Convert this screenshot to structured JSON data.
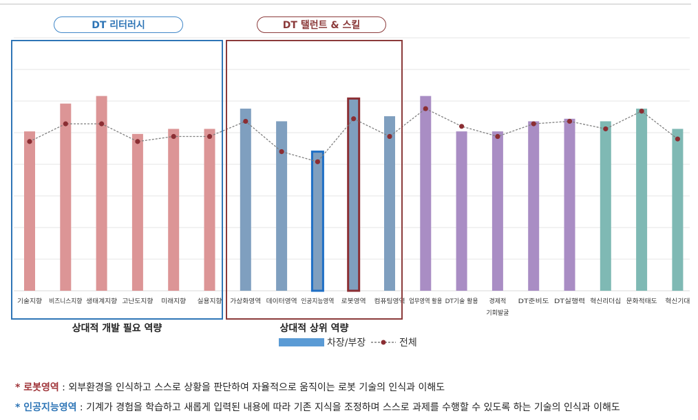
{
  "chart_data": {
    "type": "bar",
    "title": "",
    "xlabel": "",
    "ylabel": "",
    "ylim": [
      0,
      100
    ],
    "categories": [
      "기술지향",
      "비즈니스지향",
      "생태계지향",
      "고난도지향",
      "미래지향",
      "실용지향",
      "가상화영역",
      "데이터영역",
      "인공지능영역",
      "로봇영역",
      "컴퓨팅영역",
      "업무영역 활용",
      "DT기술 활용",
      "경제적 기회발굴",
      "DT준비도",
      "DT실행력",
      "혁신리더십",
      "문화적태도",
      "혁신기대"
    ],
    "series": [
      {
        "name": "차장/부장",
        "type": "bar",
        "values": [
          63,
          74,
          77,
          62,
          64,
          64,
          72,
          67,
          55,
          76,
          69,
          77,
          63,
          63,
          67,
          68,
          67,
          72,
          64
        ]
      },
      {
        "name": "전체",
        "type": "line-dashed-markers",
        "values": [
          59,
          66,
          66,
          59,
          61,
          61,
          67,
          55,
          51,
          68,
          61,
          72,
          65,
          61,
          66,
          67,
          64,
          71,
          60
        ]
      }
    ],
    "bar_colors": [
      "#dc9596",
      "#dc9596",
      "#dc9596",
      "#dc9596",
      "#dc9596",
      "#dc9596",
      "#7f9fbf",
      "#7f9fbf",
      "#7f9fbf",
      "#7f9fbf",
      "#7f9fbf",
      "#a98dc4",
      "#a98dc4",
      "#a98dc4",
      "#a98dc4",
      "#a98dc4",
      "#7fb9b4",
      "#7fb9b4",
      "#7fb9b4"
    ],
    "highlighted": [
      {
        "index": 8,
        "color": "#1f6fc5"
      },
      {
        "index": 9,
        "color": "#8b2e33"
      }
    ],
    "line_color": "#7f7f7f",
    "marker_color": "#8b2e33",
    "grid": true
  },
  "groups": {
    "dt_literacy": {
      "pill": "DT 리터러시",
      "label": "상대적 개발 필요 역량",
      "color": "#2e75b6"
    },
    "dt_talent": {
      "pill": "DT 탤런트 & 스킬",
      "label": "상대적 상위 역량",
      "color": "#8b3a3a"
    }
  },
  "legend": {
    "bar": "차장/부장",
    "line": "전체",
    "bar_color": "#5b9bd5"
  },
  "notes": [
    {
      "key": "* 로봇영역",
      "text": " : 외부환경을 인식하고 스스로 상황을 판단하여 자율적으로 움직이는 로봇 기술의 인식과 이해도"
    },
    {
      "key": "* 인공지능영역",
      "text": " : 기계가 경험을 학습하고 새롭게 입력된 내용에 따라 기존 지식을 조정하며 스스로 과제를 수행할 수 있도록 하는 기술의 인식과 이해도"
    }
  ]
}
